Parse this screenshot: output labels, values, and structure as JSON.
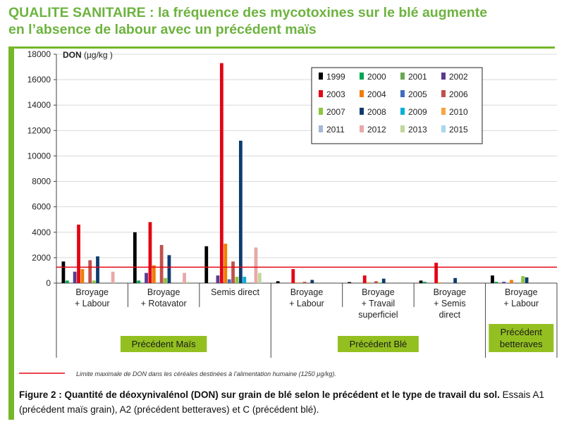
{
  "title_lines": [
    "QUALITE SANITAIRE : la fréquence des mycotoxines sur le blé augmente",
    "en l’absence de labour avec un précédent maïs"
  ],
  "colors": {
    "title": "#6db33f",
    "frame": "#76b82a",
    "group_box": "#93c020",
    "threshold": "#e30613"
  },
  "caption": {
    "bold": "Figure 2  : Quantité de déoxynivalénol (DON) sur grain de blé selon le précédent et le type de travail du sol.",
    "normal": " Essais A1 (précédent maïs grain), A2 (précédent betteraves) et C (précédent blé)."
  },
  "chart_data": {
    "type": "bar",
    "ylabel": "DON",
    "yunit": "(µg/kg )",
    "ylim": [
      0,
      18000
    ],
    "yticks": [
      0,
      2000,
      4000,
      6000,
      8000,
      10000,
      12000,
      14000,
      16000,
      18000
    ],
    "grid": true,
    "legend_position": "top-right",
    "threshold": {
      "value": 1250,
      "label": "Limite maximale de DON dans les céréales destinées à l’alimentation humaine (1250 µg/kg)."
    },
    "categories": [
      [
        "Broyage",
        "+ Labour"
      ],
      [
        "Broyage",
        "+ Rotavator"
      ],
      [
        "Semis direct"
      ],
      [
        "Broyage",
        "+ Labour"
      ],
      [
        "Broyage",
        "+ Travail",
        "superficiel"
      ],
      [
        "Broyage",
        "+ Semis",
        "direct"
      ],
      [
        "Broyage",
        "+ Labour"
      ]
    ],
    "groups": [
      {
        "label": [
          "Précédent Maïs"
        ],
        "span": [
          0,
          2
        ]
      },
      {
        "label": [
          "Précédent Blé"
        ],
        "span": [
          3,
          5
        ]
      },
      {
        "label": [
          "Précédent",
          "betteraves"
        ],
        "span": [
          6,
          6
        ]
      }
    ],
    "series": [
      {
        "name": "1999",
        "color": "#000000",
        "values": [
          1700,
          4000,
          2900,
          150,
          80,
          200,
          600
        ]
      },
      {
        "name": "2000",
        "color": "#00a651",
        "values": [
          200,
          200,
          0,
          0,
          0,
          100,
          100
        ]
      },
      {
        "name": "2001",
        "color": "#6aa84f",
        "values": [
          0,
          0,
          0,
          0,
          0,
          0,
          0
        ]
      },
      {
        "name": "2002",
        "color": "#5b3a8e",
        "values": [
          900,
          800,
          600,
          0,
          0,
          0,
          100
        ]
      },
      {
        "name": "2003",
        "color": "#e30613",
        "values": [
          4600,
          4800,
          17300,
          1100,
          600,
          1600,
          0
        ]
      },
      {
        "name": "2004",
        "color": "#f07d00",
        "values": [
          1100,
          1400,
          3100,
          50,
          50,
          50,
          250
        ]
      },
      {
        "name": "2005",
        "color": "#3f6cc0",
        "values": [
          0,
          0,
          300,
          0,
          0,
          0,
          0
        ]
      },
      {
        "name": "2006",
        "color": "#c0504d",
        "values": [
          1800,
          3000,
          1700,
          100,
          150,
          0,
          0
        ]
      },
      {
        "name": "2007",
        "color": "#8dc63f",
        "values": [
          200,
          400,
          500,
          0,
          50,
          0,
          550
        ]
      },
      {
        "name": "2008",
        "color": "#0f3b6e",
        "values": [
          2100,
          2200,
          11200,
          250,
          350,
          400,
          450
        ]
      },
      {
        "name": "2009",
        "color": "#00b0d8",
        "values": [
          0,
          0,
          500,
          0,
          0,
          0,
          0
        ]
      },
      {
        "name": "2010",
        "color": "#f7a541",
        "values": [
          0,
          0,
          0,
          0,
          0,
          0,
          0
        ]
      },
      {
        "name": "2011",
        "color": "#a4b8d6",
        "values": [
          0,
          0,
          0,
          0,
          0,
          0,
          0
        ]
      },
      {
        "name": "2012",
        "color": "#e8a9a9",
        "values": [
          900,
          800,
          2800,
          0,
          0,
          0,
          0
        ]
      },
      {
        "name": "2013",
        "color": "#c3d69b",
        "values": [
          0,
          100,
          800,
          0,
          0,
          0,
          0
        ]
      },
      {
        "name": "2015",
        "color": "#a8d8ea",
        "values": [
          0,
          0,
          0,
          0,
          0,
          0,
          0
        ]
      }
    ]
  }
}
